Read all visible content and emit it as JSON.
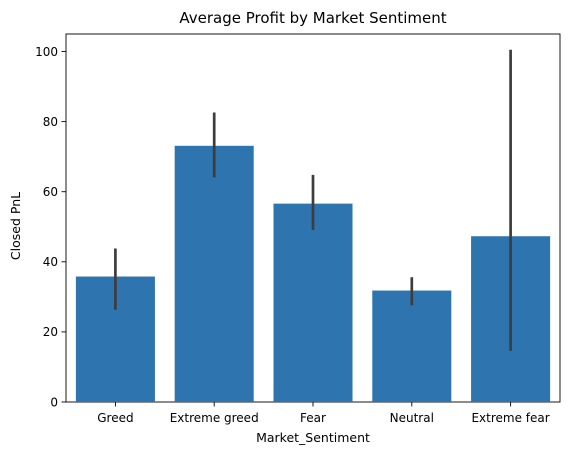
{
  "chart_data": {
    "type": "bar",
    "title": "Average Profit by Market Sentiment",
    "xlabel": "Market_Sentiment",
    "ylabel": "Closed PnL",
    "categories": [
      "Greed",
      "Extreme greed",
      "Fear",
      "Neutral",
      "Extreme fear"
    ],
    "values": [
      35.8,
      73.1,
      56.6,
      31.8,
      47.3
    ],
    "error_bars": [
      {
        "low": 26.3,
        "high": 43.8
      },
      {
        "low": 64.1,
        "high": 82.6
      },
      {
        "low": 49.1,
        "high": 64.8
      },
      {
        "low": 27.6,
        "high": 35.6
      },
      {
        "low": 14.6,
        "high": 100.5
      }
    ],
    "ylim": [
      0,
      105
    ],
    "yticks": [
      0,
      20,
      40,
      60,
      80,
      100
    ],
    "grid": false,
    "bar_color": "#2e75b0",
    "errorbar_color": "#3d3d3d"
  }
}
